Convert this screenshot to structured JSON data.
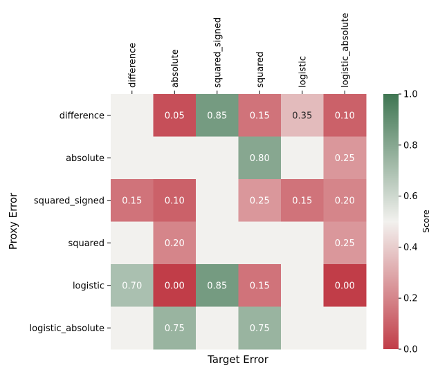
{
  "chart_data": {
    "type": "heatmap",
    "title": "",
    "xlabel": "Target Error",
    "ylabel": "Proxy Error",
    "x_categories": [
      "difference",
      "absolute",
      "squared_signed",
      "squared",
      "logistic",
      "logistic_absolute"
    ],
    "y_categories": [
      "difference",
      "absolute",
      "squared_signed",
      "squared",
      "logistic",
      "logistic_absolute"
    ],
    "values": [
      [
        null,
        0.05,
        0.85,
        0.15,
        0.35,
        0.1
      ],
      [
        null,
        null,
        null,
        0.8,
        null,
        0.25
      ],
      [
        0.15,
        0.1,
        null,
        0.25,
        0.15,
        0.2
      ],
      [
        null,
        0.2,
        null,
        null,
        null,
        0.25
      ],
      [
        0.7,
        0.0,
        0.85,
        0.15,
        null,
        0.0
      ],
      [
        null,
        0.75,
        null,
        0.75,
        null,
        null
      ]
    ],
    "value_format": "2 decimals",
    "missing_color": "#f2f1ee",
    "colorbar": {
      "label": "Score",
      "range": [
        0.0,
        1.0
      ],
      "ticks": [
        "0.0",
        "0.2",
        "0.4",
        "0.6",
        "0.8",
        "1.0"
      ],
      "colors": {
        "low": "#c13d48",
        "mid": "#f2f1ee",
        "high": "#3f7652"
      }
    }
  }
}
